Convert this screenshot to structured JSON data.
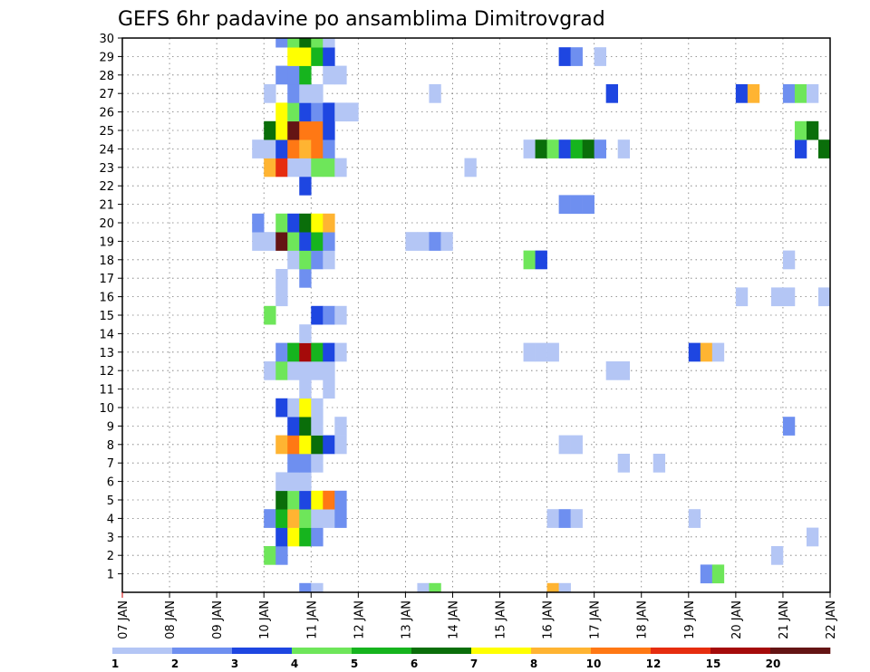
{
  "title": "GEFS 6hr padavine po ansamblima Dimitrovgrad",
  "chart_data": {
    "type": "heatmap",
    "title": "GEFS 6hr padavine po ansamblima Dimitrovgrad",
    "x_ticks": [
      "07 JAN",
      "08 JAN",
      "09 JAN",
      "10 JAN",
      "11 JAN",
      "12 JAN",
      "13 JAN",
      "14 JAN",
      "15 JAN",
      "16 JAN",
      "17 JAN",
      "18 JAN",
      "19 JAN",
      "20 JAN",
      "21 JAN",
      "22 JAN"
    ],
    "y_ticks": [
      1,
      2,
      3,
      4,
      5,
      6,
      7,
      8,
      9,
      10,
      11,
      12,
      13,
      14,
      15,
      16,
      17,
      18,
      19,
      20,
      21,
      22,
      23,
      24,
      25,
      26,
      27,
      28,
      29,
      30
    ],
    "xlim_days": [
      7,
      22
    ],
    "ylim": [
      0,
      30
    ],
    "grid": true,
    "legend_position": "bottom",
    "colorbar": {
      "labels": [
        "1",
        "2",
        "3",
        "4",
        "5",
        "6",
        "7",
        "8",
        "10",
        "12",
        "15",
        "20"
      ],
      "colors": [
        "#b4c6f5",
        "#6e8ff0",
        "#1e46e1",
        "#6ee65a",
        "#16b41e",
        "#0a6e0a",
        "#ffff00",
        "#ffb432",
        "#ff7814",
        "#e62d0f",
        "#a50a0a",
        "#641414"
      ]
    },
    "cells_note": "each cell: [member (row), day-of-January at the start of the 6-hour step, color class 0-11]",
    "cells": [
      [
        0,
        10.75,
        1
      ],
      [
        0,
        11.0,
        0
      ],
      [
        0,
        13.25,
        0
      ],
      [
        0,
        13.5,
        3
      ],
      [
        0,
        16.0,
        7
      ],
      [
        0,
        16.25,
        0
      ],
      [
        1,
        19.25,
        1
      ],
      [
        1,
        19.5,
        3
      ],
      [
        2,
        10.0,
        3
      ],
      [
        2,
        10.25,
        1
      ],
      [
        2,
        20.75,
        0
      ],
      [
        3,
        10.25,
        2
      ],
      [
        3,
        10.5,
        6
      ],
      [
        3,
        10.75,
        4
      ],
      [
        3,
        11.0,
        1
      ],
      [
        3,
        21.5,
        0
      ],
      [
        4,
        10.0,
        1
      ],
      [
        4,
        10.25,
        4
      ],
      [
        4,
        10.5,
        7
      ],
      [
        4,
        10.75,
        3
      ],
      [
        4,
        11.0,
        0
      ],
      [
        4,
        11.25,
        0
      ],
      [
        4,
        11.5,
        1
      ],
      [
        4,
        16.0,
        0
      ],
      [
        4,
        16.25,
        1
      ],
      [
        4,
        16.5,
        0
      ],
      [
        4,
        19.0,
        0
      ],
      [
        5,
        10.25,
        5
      ],
      [
        5,
        10.5,
        3
      ],
      [
        5,
        10.75,
        2
      ],
      [
        5,
        11.0,
        6
      ],
      [
        5,
        11.25,
        8
      ],
      [
        5,
        11.5,
        1
      ],
      [
        6,
        10.25,
        0
      ],
      [
        6,
        10.5,
        0
      ],
      [
        6,
        10.75,
        0
      ],
      [
        7,
        10.5,
        1
      ],
      [
        7,
        10.75,
        1
      ],
      [
        7,
        11.0,
        0
      ],
      [
        7,
        17.5,
        0
      ],
      [
        7,
        18.25,
        0
      ],
      [
        8,
        10.25,
        7
      ],
      [
        8,
        10.5,
        8
      ],
      [
        8,
        10.75,
        6
      ],
      [
        8,
        11.0,
        5
      ],
      [
        8,
        11.25,
        2
      ],
      [
        8,
        11.5,
        0
      ],
      [
        8,
        16.25,
        0
      ],
      [
        8,
        16.5,
        0
      ],
      [
        9,
        10.5,
        2
      ],
      [
        9,
        10.75,
        5
      ],
      [
        9,
        11.0,
        0
      ],
      [
        9,
        11.5,
        0
      ],
      [
        9,
        21.0,
        1
      ],
      [
        10,
        10.25,
        2
      ],
      [
        10,
        10.5,
        0
      ],
      [
        10,
        10.75,
        6
      ],
      [
        10,
        11.0,
        0
      ],
      [
        11,
        10.75,
        0
      ],
      [
        11,
        11.25,
        0
      ],
      [
        12,
        10.0,
        0
      ],
      [
        12,
        10.25,
        3
      ],
      [
        12,
        10.5,
        0
      ],
      [
        12,
        10.75,
        0
      ],
      [
        12,
        11.0,
        0
      ],
      [
        12,
        11.25,
        0
      ],
      [
        12,
        17.25,
        0
      ],
      [
        12,
        17.5,
        0
      ],
      [
        13,
        10.25,
        1
      ],
      [
        13,
        10.5,
        4
      ],
      [
        13,
        10.75,
        10
      ],
      [
        13,
        11.0,
        4
      ],
      [
        13,
        11.25,
        2
      ],
      [
        13,
        11.5,
        0
      ],
      [
        13,
        15.5,
        0
      ],
      [
        13,
        15.75,
        0
      ],
      [
        13,
        16.0,
        0
      ],
      [
        13,
        19.0,
        2
      ],
      [
        13,
        19.25,
        7
      ],
      [
        13,
        19.5,
        0
      ],
      [
        14,
        10.75,
        0
      ],
      [
        15,
        10.0,
        3
      ],
      [
        15,
        11.0,
        2
      ],
      [
        15,
        11.25,
        1
      ],
      [
        15,
        11.5,
        0
      ],
      [
        16,
        10.25,
        0
      ],
      [
        16,
        20.0,
        0
      ],
      [
        16,
        20.75,
        0
      ],
      [
        16,
        21.0,
        0
      ],
      [
        16,
        21.75,
        0
      ],
      [
        17,
        10.25,
        0
      ],
      [
        17,
        10.75,
        1
      ],
      [
        18,
        10.5,
        0
      ],
      [
        18,
        10.75,
        3
      ],
      [
        18,
        11.0,
        1
      ],
      [
        18,
        11.25,
        0
      ],
      [
        18,
        15.5,
        3
      ],
      [
        18,
        15.75,
        2
      ],
      [
        18,
        21.0,
        0
      ],
      [
        19,
        9.75,
        0
      ],
      [
        19,
        10.0,
        0
      ],
      [
        19,
        10.25,
        11
      ],
      [
        19,
        10.5,
        3
      ],
      [
        19,
        10.75,
        2
      ],
      [
        19,
        11.0,
        4
      ],
      [
        19,
        11.25,
        1
      ],
      [
        19,
        13.0,
        0
      ],
      [
        19,
        13.25,
        0
      ],
      [
        19,
        13.5,
        1
      ],
      [
        19,
        13.75,
        0
      ],
      [
        20,
        9.75,
        1
      ],
      [
        20,
        10.25,
        3
      ],
      [
        20,
        10.5,
        2
      ],
      [
        20,
        10.75,
        5
      ],
      [
        20,
        11.0,
        6
      ],
      [
        20,
        11.25,
        7
      ],
      [
        21,
        16.25,
        1
      ],
      [
        21,
        16.5,
        1
      ],
      [
        21,
        16.75,
        1
      ],
      [
        22,
        10.75,
        2
      ],
      [
        23,
        10.0,
        7
      ],
      [
        23,
        10.25,
        9
      ],
      [
        23,
        10.5,
        0
      ],
      [
        23,
        10.75,
        0
      ],
      [
        23,
        11.0,
        3
      ],
      [
        23,
        11.25,
        3
      ],
      [
        23,
        11.5,
        0
      ],
      [
        23,
        14.25,
        0
      ],
      [
        24,
        9.75,
        0
      ],
      [
        24,
        10.0,
        0
      ],
      [
        24,
        10.25,
        2
      ],
      [
        24,
        10.5,
        8
      ],
      [
        24,
        10.75,
        7
      ],
      [
        24,
        11.0,
        8
      ],
      [
        24,
        11.25,
        1
      ],
      [
        24,
        15.5,
        0
      ],
      [
        24,
        15.75,
        5
      ],
      [
        24,
        16.0,
        3
      ],
      [
        24,
        16.25,
        2
      ],
      [
        24,
        16.5,
        4
      ],
      [
        24,
        16.75,
        5
      ],
      [
        24,
        17.0,
        1
      ],
      [
        24,
        17.5,
        0
      ],
      [
        24,
        21.25,
        2
      ],
      [
        24,
        21.75,
        5
      ],
      [
        25,
        10.0,
        5
      ],
      [
        25,
        10.25,
        6
      ],
      [
        25,
        10.5,
        11
      ],
      [
        25,
        10.75,
        8
      ],
      [
        25,
        11.0,
        8
      ],
      [
        25,
        11.25,
        2
      ],
      [
        25,
        21.25,
        3
      ],
      [
        25,
        21.5,
        5
      ],
      [
        26,
        10.25,
        6
      ],
      [
        26,
        10.5,
        3
      ],
      [
        26,
        10.75,
        2
      ],
      [
        26,
        11.0,
        1
      ],
      [
        26,
        11.25,
        2
      ],
      [
        26,
        11.5,
        0
      ],
      [
        26,
        11.75,
        0
      ],
      [
        27,
        10.0,
        0
      ],
      [
        27,
        10.5,
        1
      ],
      [
        27,
        10.75,
        0
      ],
      [
        27,
        11.0,
        0
      ],
      [
        27,
        13.5,
        0
      ],
      [
        27,
        17.25,
        2
      ],
      [
        27,
        20.0,
        2
      ],
      [
        27,
        20.25,
        7
      ],
      [
        27,
        21.0,
        1
      ],
      [
        27,
        21.25,
        3
      ],
      [
        27,
        21.5,
        0
      ],
      [
        28,
        10.25,
        1
      ],
      [
        28,
        10.5,
        1
      ],
      [
        28,
        10.75,
        4
      ],
      [
        28,
        11.25,
        0
      ],
      [
        28,
        11.5,
        0
      ],
      [
        29,
        10.5,
        6
      ],
      [
        29,
        10.75,
        6
      ],
      [
        29,
        11.0,
        4
      ],
      [
        29,
        11.25,
        2
      ],
      [
        29,
        16.25,
        2
      ],
      [
        29,
        16.5,
        1
      ],
      [
        29,
        17.0,
        0
      ],
      [
        30,
        10.25,
        1
      ],
      [
        30,
        10.5,
        3
      ],
      [
        30,
        10.75,
        5
      ],
      [
        30,
        11.0,
        3
      ],
      [
        30,
        11.25,
        0
      ]
    ]
  }
}
